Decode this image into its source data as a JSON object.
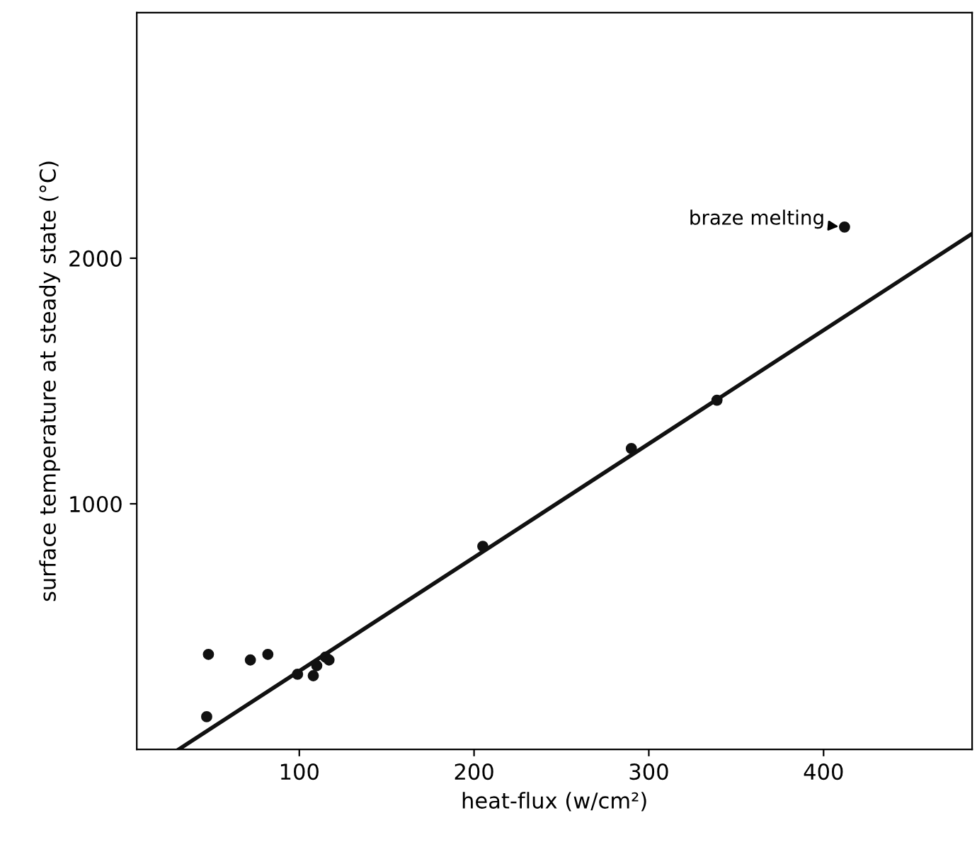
{
  "chart_data": {
    "type": "scatter",
    "xlabel": "heat-flux (w/cm²)",
    "ylabel": "surface temperature at steady state (°C)",
    "xlim": [
      7,
      485
    ],
    "ylim": [
      0,
      3000
    ],
    "xticks": [
      100,
      200,
      300,
      400
    ],
    "yticks": [
      1000,
      2000
    ],
    "grid": false,
    "legend": false,
    "marker": "circle",
    "series": [
      {
        "color": "#111111",
        "x": [
          48,
          47,
          72,
          82,
          99,
          108,
          110,
          115,
          117,
          205,
          290,
          339,
          412
        ],
        "values": [
          387,
          133,
          364,
          387,
          306,
          300,
          341,
          376,
          364,
          827,
          1225,
          1422,
          2127
        ]
      },
      {
        "type": "line",
        "color": "#111111",
        "line_style": "solid",
        "marker": "none",
        "x": [
          31,
          485
        ],
        "values": [
          0,
          2100
        ]
      }
    ],
    "annotations": [
      {
        "text": "braze melting",
        "x": 412,
        "y": 2127
      }
    ]
  }
}
